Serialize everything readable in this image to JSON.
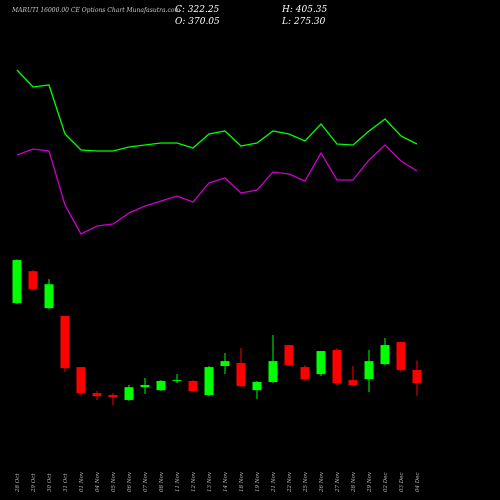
{
  "chart_data": {
    "type": "candlestick",
    "title": "MARUTI 16000.00 CE Options Chart Munafasutra.com",
    "ohlc_text": {
      "close": "C: 322.25",
      "high": "H: 405.35",
      "open": "O: 370.05",
      "low": "L: 275.30"
    },
    "categories": [
      "28 Oct",
      "29 Oct",
      "30 Oct",
      "31 Oct",
      "01 Nov",
      "04 Nov",
      "05 Nov",
      "06 Nov",
      "07 Nov",
      "08 Nov",
      "11 Nov",
      "12 Nov",
      "13 Nov",
      "14 Nov",
      "18 Nov",
      "19 Nov",
      "21 Nov",
      "22 Nov",
      "25 Nov",
      "26 Nov",
      "27 Nov",
      "28 Nov",
      "29 Nov",
      "02 Dec",
      "03 Dec",
      "04 Dec"
    ],
    "open": [
      617,
      734,
      598,
      569,
      381,
      285,
      278,
      260,
      307,
      296,
      330,
      330,
      278,
      385,
      396,
      296,
      326,
      462,
      381,
      355,
      444,
      333,
      337,
      392,
      473,
      370.05
    ],
    "high": [
      778,
      738,
      705,
      569,
      381,
      293,
      285,
      315,
      341,
      333,
      355,
      333,
      385,
      433,
      451,
      330,
      499,
      462,
      388,
      440,
      451,
      385,
      444,
      488,
      473,
      405.35
    ],
    "low": [
      613,
      664,
      594,
      363,
      278,
      260,
      241,
      256,
      282,
      293,
      322,
      289,
      274,
      355,
      307,
      263,
      322,
      385,
      330,
      348,
      315,
      311,
      289,
      388,
      363,
      275.3
    ],
    "close": [
      775,
      668,
      686,
      377,
      285,
      274,
      271,
      307,
      315,
      330,
      333,
      293,
      381,
      403,
      311,
      326,
      403,
      388,
      337,
      440,
      322,
      315,
      403,
      462,
      370,
      322.25
    ],
    "ylim": [
      223,
      812
    ],
    "up_color": "#00ff00",
    "down_color": "#ff0000",
    "lines": {
      "ylim": [
        50,
        250
      ],
      "series": [
        {
          "color": "#00ff00",
          "values": [
            230,
            213,
            215,
            166,
            150,
            149,
            149,
            153,
            155,
            157,
            157,
            152,
            166,
            169,
            154,
            157,
            169,
            166,
            159,
            176,
            156,
            155,
            169,
            181,
            164,
            156
          ]
        },
        {
          "color": "#cc00cc",
          "values": [
            145,
            151,
            149,
            95,
            66,
            74,
            76,
            87,
            94,
            99,
            104,
            98,
            117,
            122,
            107,
            110,
            128,
            126,
            119,
            147,
            120,
            120,
            140,
            155,
            139,
            129
          ]
        }
      ]
    }
  }
}
